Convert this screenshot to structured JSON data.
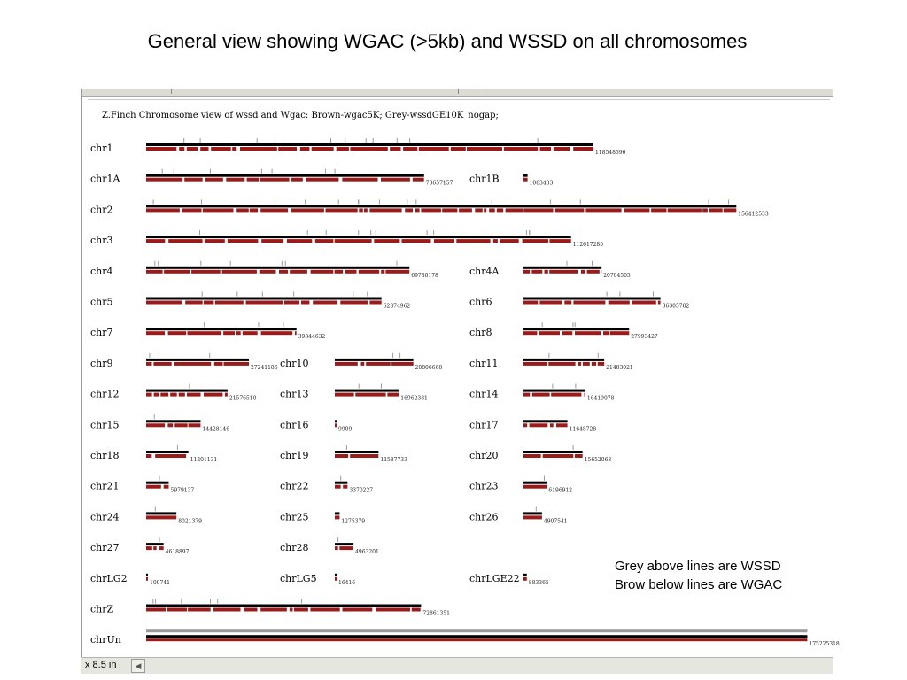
{
  "slide": {
    "title": "General view showing WGAC (>5kb) and WSSD on all chromosomes",
    "note_line1": "Grey above lines are WSSD",
    "note_line2": "Brow below lines are WGAC"
  },
  "view": {
    "header": "Z.Finch Chromosome view of wssd and Wgac: Brown-wgac5K; Grey-wssdGE10K_nogap;",
    "colors": {
      "wgac": "#9b1b1b",
      "wssd": "#9a9a9a",
      "line": "#000000"
    },
    "chromosomes": [
      {
        "name": "chr1",
        "size": "118548696"
      },
      {
        "name": "chr1A",
        "size": "73657157"
      },
      {
        "name": "chr1B",
        "size": "1083483"
      },
      {
        "name": "chr2",
        "size": "156412533"
      },
      {
        "name": "chr3",
        "size": "112617285"
      },
      {
        "name": "chr4",
        "size": "69780178"
      },
      {
        "name": "chr4A",
        "size": "20704505"
      },
      {
        "name": "chr5",
        "size": "62374962"
      },
      {
        "name": "chr6",
        "size": "36305782"
      },
      {
        "name": "chr7",
        "size": "39844632"
      },
      {
        "name": "chr8",
        "size": "27993427"
      },
      {
        "name": "chr9",
        "size": "27241186"
      },
      {
        "name": "chr10",
        "size": "20806668"
      },
      {
        "name": "chr11",
        "size": "21403021"
      },
      {
        "name": "chr12",
        "size": "21576510"
      },
      {
        "name": "chr13",
        "size": "16962381"
      },
      {
        "name": "chr14",
        "size": "16419078"
      },
      {
        "name": "chr15",
        "size": "14428146"
      },
      {
        "name": "chr16",
        "size": "9909"
      },
      {
        "name": "chr17",
        "size": "11648728"
      },
      {
        "name": "chr18",
        "size": "11201131"
      },
      {
        "name": "chr19",
        "size": "11587733"
      },
      {
        "name": "chr20",
        "size": "15652063"
      },
      {
        "name": "chr21",
        "size": "5979137"
      },
      {
        "name": "chr22",
        "size": "3370227"
      },
      {
        "name": "chr23",
        "size": "6196912"
      },
      {
        "name": "chr24",
        "size": "8021379"
      },
      {
        "name": "chr25",
        "size": "1275379"
      },
      {
        "name": "chr26",
        "size": "4907541"
      },
      {
        "name": "chr27",
        "size": "4618897"
      },
      {
        "name": "chr28",
        "size": "4963201"
      },
      {
        "name": "chrLG2",
        "size": "109741"
      },
      {
        "name": "chrLG5",
        "size": "16416"
      },
      {
        "name": "chrLGE22",
        "size": "883365"
      },
      {
        "name": "chrZ",
        "size": "72861351"
      },
      {
        "name": "chrUn",
        "size": "175225318"
      }
    ]
  },
  "statusbar": {
    "zoom": "x 8.5 in",
    "arrow": "◀"
  }
}
